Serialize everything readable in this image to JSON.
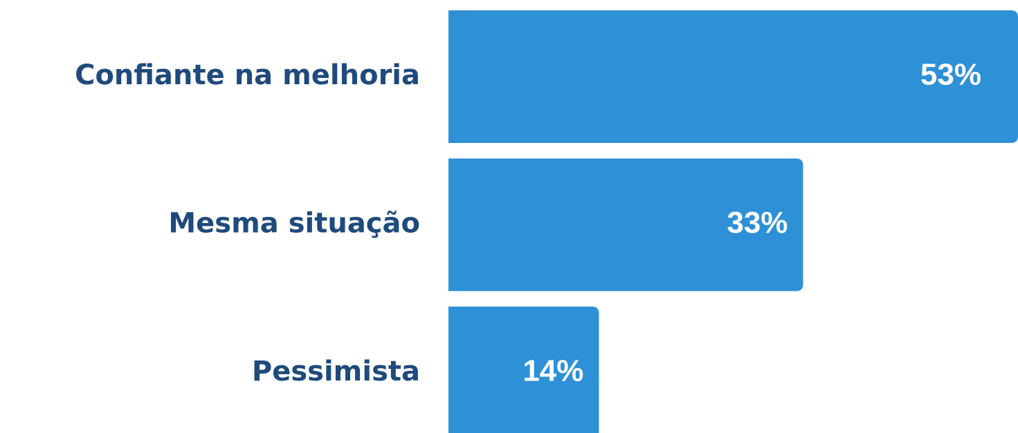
{
  "chart_data": {
    "type": "bar",
    "orientation": "horizontal",
    "categories": [
      "Confiante na melhoria",
      "Mesma situação",
      "Pessimista"
    ],
    "values": [
      53,
      33,
      14
    ],
    "value_labels": [
      "53%",
      "33%",
      "14%"
    ],
    "color": "#2e90d6",
    "xlim": [
      0,
      53
    ]
  }
}
